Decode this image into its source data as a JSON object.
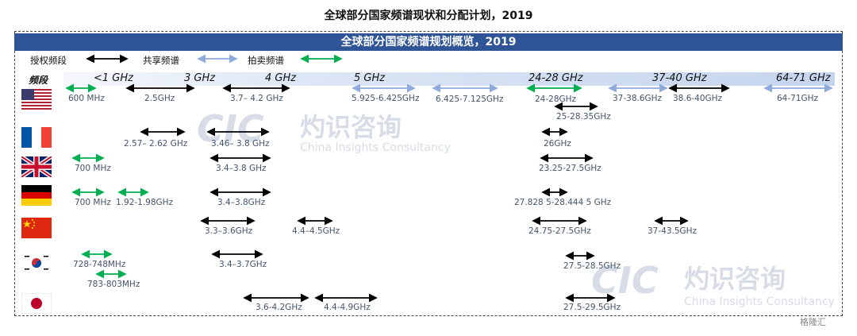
{
  "title": "全球部分国家频谱现状和分配计划，2019",
  "banner": "全球部分国家频谱规划概览，2019",
  "legend": {
    "licensed": "授权频段",
    "shared": "共享频谱",
    "auction": "拍卖频谱"
  },
  "column_header": "频段",
  "bands": [
    "<1 GHz",
    "3 GHz",
    "4 GHz",
    "5 GHz",
    "24-28 GHz",
    "37-40 GHz",
    "64-71 GHz"
  ],
  "colors": {
    "licensed": "#000000",
    "shared": "#8faadc",
    "auction": "#00b050",
    "banner": "#2f5597",
    "label": "#44546a"
  },
  "countries": [
    {
      "flag": "us-flag",
      "ranges": [
        {
          "label": "600 MHz",
          "type": "auction"
        },
        {
          "label": "2.5GHz",
          "type": "licensed"
        },
        {
          "label": "3.7– 4.2 GHz",
          "type": "licensed"
        },
        {
          "label": "5.925-6.425GHz",
          "type": "shared"
        },
        {
          "label": "6.425-7.125GHz",
          "type": "shared"
        },
        {
          "label": "24-28GHz",
          "type": "auction"
        },
        {
          "label": "25-28.35GHz",
          "type": "licensed"
        },
        {
          "label": "37-38.6GHz",
          "type": "shared"
        },
        {
          "label": "38.6-40GHz",
          "type": "licensed"
        },
        {
          "label": "64-71GHz",
          "type": "shared"
        }
      ]
    },
    {
      "flag": "france-flag",
      "ranges": [
        {
          "label": "2.57– 2.62 GHz",
          "type": "licensed"
        },
        {
          "label": "3.46– 3.8 GHz",
          "type": "licensed"
        },
        {
          "label": "26GHz",
          "type": "licensed"
        }
      ]
    },
    {
      "flag": "uk-flag",
      "ranges": [
        {
          "label": "700 MHz",
          "type": "auction"
        },
        {
          "label": "3.4–3.8 GHz",
          "type": "licensed"
        },
        {
          "label": "23.25-27.5GHz",
          "type": "licensed"
        }
      ]
    },
    {
      "flag": "germany-flag",
      "ranges": [
        {
          "label": "700 MHz",
          "type": "auction"
        },
        {
          "label": "1.92-1.98GHz",
          "type": "auction"
        },
        {
          "label": "3.4–3.8GHz",
          "type": "licensed"
        },
        {
          "label": "27.828 5-28.444 5 GHz",
          "type": "licensed"
        }
      ]
    },
    {
      "flag": "china-flag",
      "ranges": [
        {
          "label": "3.3–3.6GHz",
          "type": "licensed"
        },
        {
          "label": "4.4–4.5GHz",
          "type": "licensed"
        },
        {
          "label": "24.75-27.5GHz",
          "type": "licensed"
        },
        {
          "label": "37-43.5GHz",
          "type": "licensed"
        }
      ]
    },
    {
      "flag": "korea-flag",
      "ranges": [
        {
          "label": "728-748MHz",
          "type": "auction"
        },
        {
          "label": "783-803MHz",
          "type": "auction"
        },
        {
          "label": "3.4–3.7GHz",
          "type": "licensed"
        },
        {
          "label": "27.5-28.5GHz",
          "type": "licensed"
        }
      ]
    },
    {
      "flag": "japan-flag",
      "ranges": [
        {
          "label": "3.6-4.2GHz",
          "type": "licensed"
        },
        {
          "label": "4.4-4.9GHz",
          "type": "licensed"
        },
        {
          "label": "27.5-29.5GHz",
          "type": "licensed"
        }
      ]
    }
  ],
  "watermark": {
    "logo": "CIC",
    "cn": "灼识咨询",
    "en": "China Insights Consultancy"
  },
  "footer_badge": "格隆汇"
}
